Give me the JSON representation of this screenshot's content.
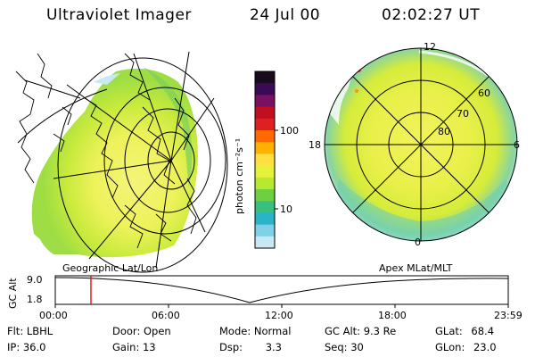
{
  "header": {
    "title": "Ultraviolet Imager",
    "date": "24 Jul 00",
    "time": "02:02:27 UT"
  },
  "colorbar": {
    "label": "photon cm⁻²s⁻¹",
    "ticks": [
      "100",
      "10"
    ],
    "colors": [
      "#1a0a1e",
      "#3a0a55",
      "#7a1060",
      "#c01020",
      "#e02020",
      "#ff6a00",
      "#ffb000",
      "#ffe040",
      "#e6f23a",
      "#b8e830",
      "#6ed040",
      "#38c080",
      "#2ab4c8",
      "#80d0e8",
      "#c8e8f4"
    ]
  },
  "left_map": {
    "label": "Geographic Lat/Lon"
  },
  "right_map": {
    "label": "Apex MLat/MLT",
    "mlt_labels": [
      "12",
      "18",
      "6",
      "0"
    ],
    "lat_labels": [
      "60",
      "70",
      "80"
    ]
  },
  "timeline": {
    "axis_label": "GC Alt",
    "y_ticks": [
      "9.0",
      "1.8"
    ],
    "x_ticks": [
      "00:00",
      "06:00",
      "12:00",
      "18:00",
      "23:59"
    ],
    "marker_color": "#e02020"
  },
  "info": {
    "row1": [
      {
        "key": "Flt:",
        "val": "LBHL"
      },
      {
        "key": "Door:",
        "val": "Open"
      },
      {
        "key": "Mode:",
        "val": "Normal"
      },
      {
        "key": "GC Alt:",
        "val": "9.3 Re"
      },
      {
        "key": "GLat:",
        "val": "68.4"
      }
    ],
    "row2": [
      {
        "key": "IP:",
        "val": "36.0"
      },
      {
        "key": "Gain:",
        "val": "13"
      },
      {
        "key": "Dsp:",
        "val": "3.3"
      },
      {
        "key": "Seq:",
        "val": "30"
      },
      {
        "key": "GLon:",
        "val": "23.0"
      }
    ]
  }
}
